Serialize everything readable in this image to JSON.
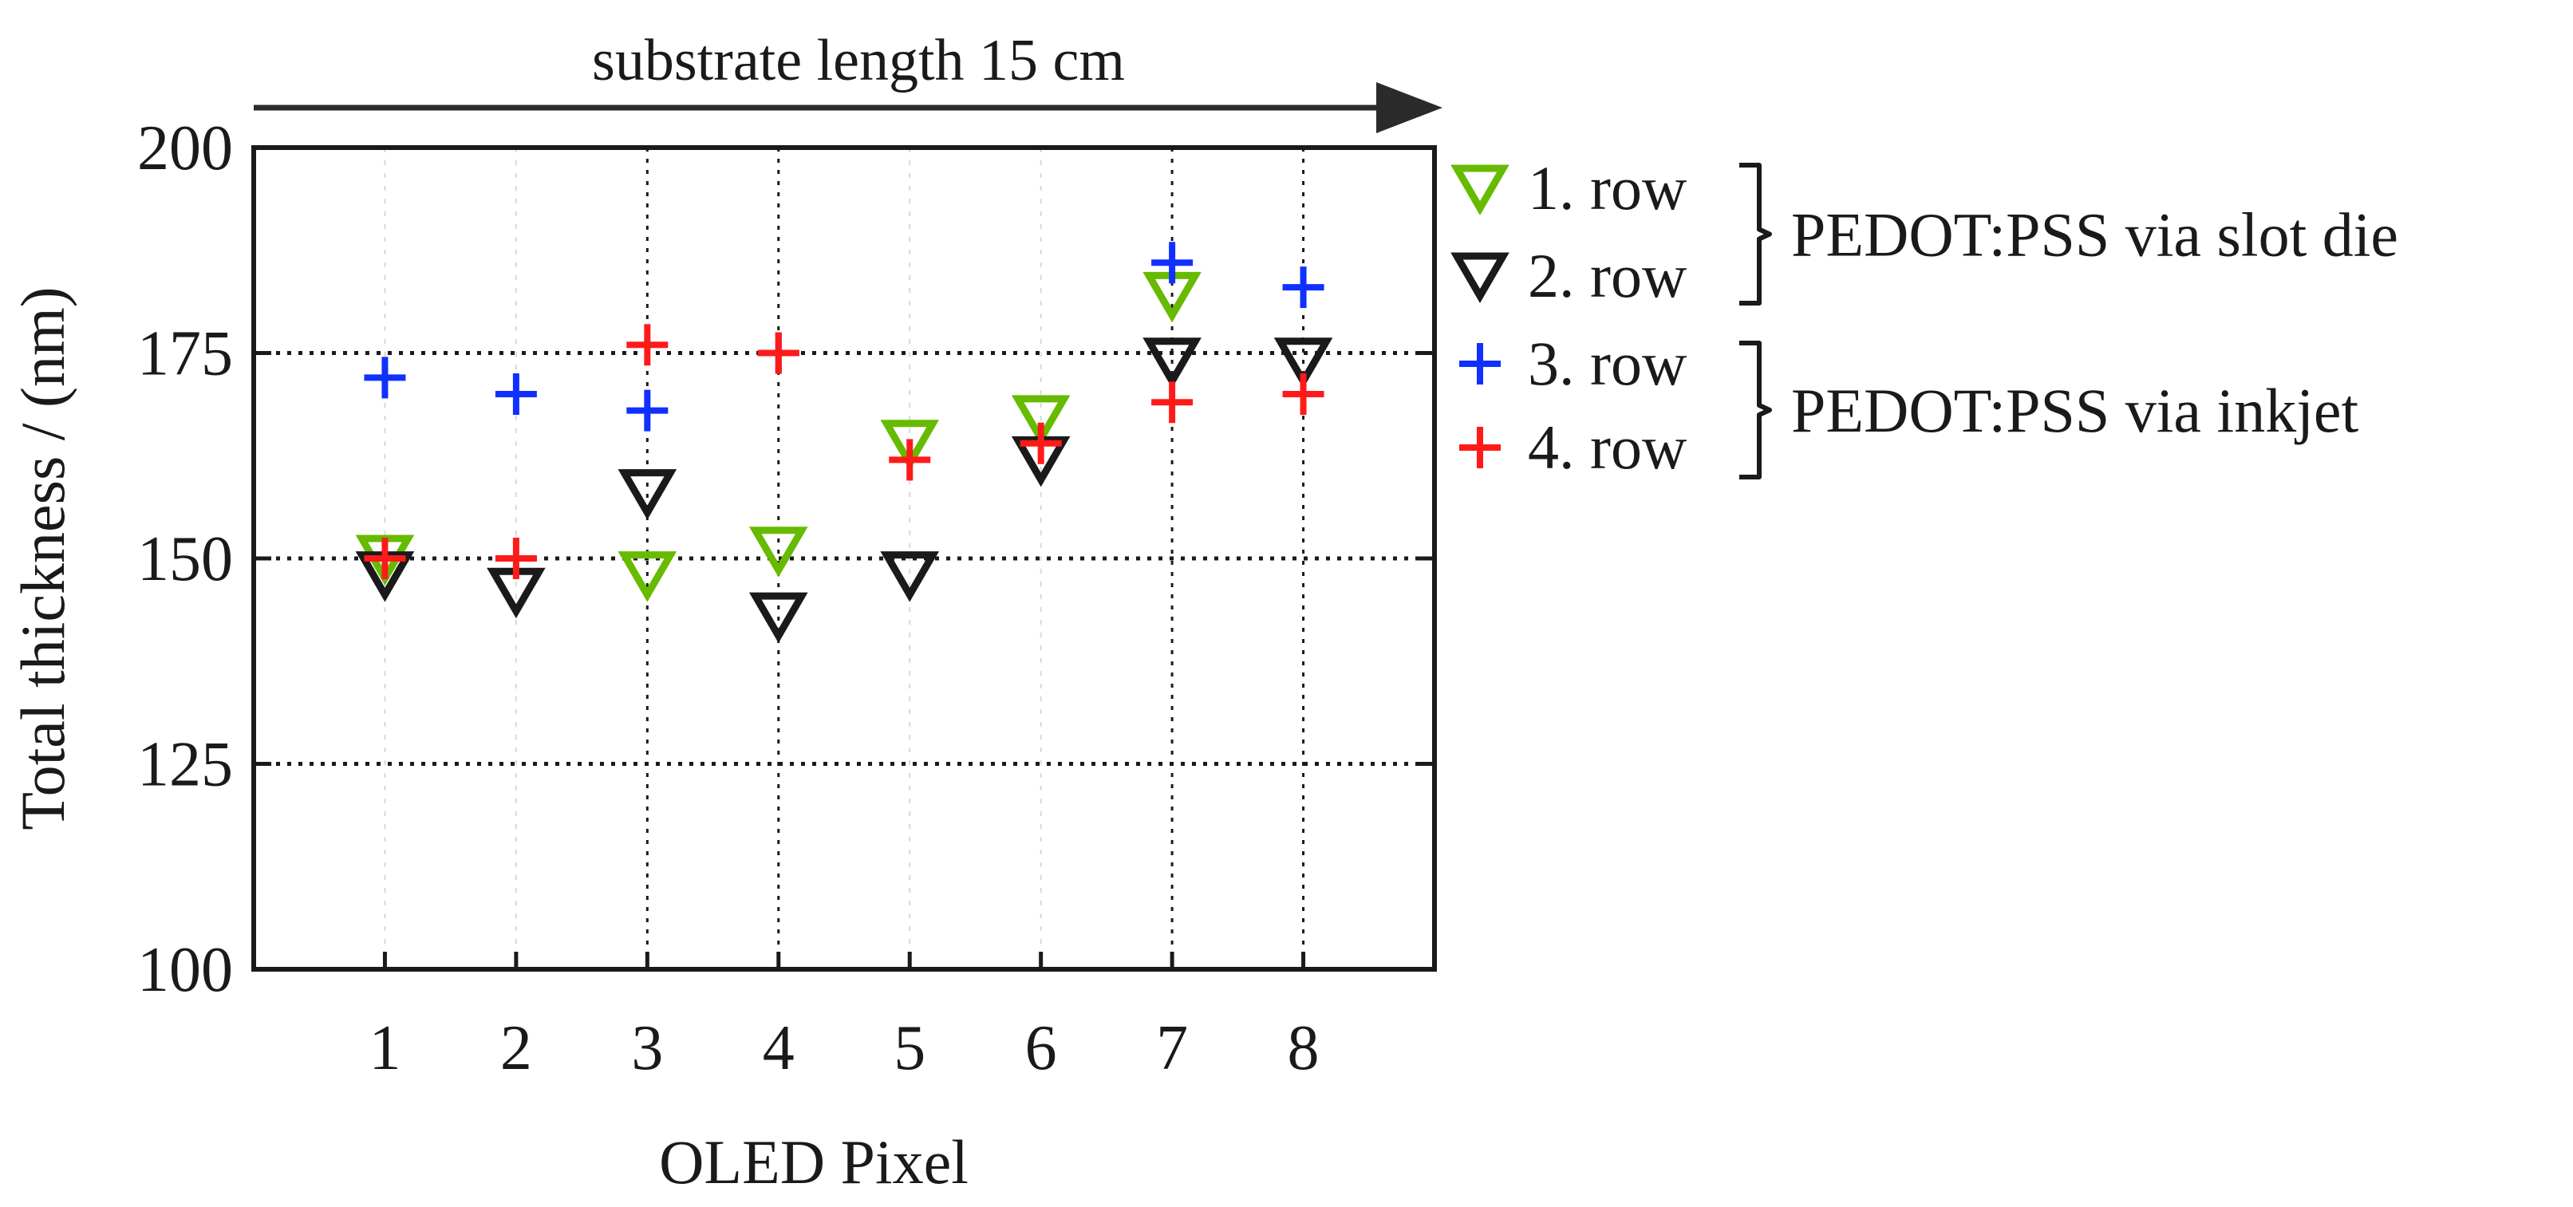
{
  "chart_data": {
    "type": "scatter",
    "title": "",
    "banner": "substrate length 15 cm",
    "xlabel": "OLED Pixel",
    "ylabel": "Total thickness / (nm)",
    "xlim": [
      0,
      9
    ],
    "ylim": [
      100,
      200
    ],
    "x_ticks": [
      1,
      2,
      3,
      4,
      5,
      6,
      7,
      8
    ],
    "y_ticks": [
      100,
      125,
      150,
      175,
      200
    ],
    "grid": "dotted lines at y = 125, 150, 175 and x = 3, 4, 7, 8",
    "legend_position": "right, outside plot",
    "series": [
      {
        "name": "1. row",
        "marker": "triangle-down",
        "color": "#66bb00",
        "x": [
          1,
          3,
          4,
          5,
          6,
          7
        ],
        "y": [
          150,
          148,
          151,
          164,
          167,
          182
        ]
      },
      {
        "name": "2. row",
        "marker": "triangle-down",
        "color": "#1a1a1a",
        "x": [
          1,
          2,
          3,
          4,
          5,
          6,
          7,
          8
        ],
        "y": [
          148,
          146,
          158,
          143,
          148,
          162,
          174,
          174
        ]
      },
      {
        "name": "3. row",
        "marker": "plus",
        "color": "#1030ff",
        "x": [
          1,
          2,
          3,
          4,
          7,
          8
        ],
        "y": [
          172,
          170,
          168,
          175,
          186,
          183
        ]
      },
      {
        "name": "4. row",
        "marker": "plus",
        "color": "#ff1a1a",
        "x": [
          1,
          2,
          3,
          4,
          5,
          6,
          7,
          8
        ],
        "y": [
          150,
          150,
          176,
          175,
          162,
          164,
          169,
          170
        ]
      }
    ],
    "groups": [
      {
        "label": "PEDOT:PSS via slot die",
        "series": [
          "1. row",
          "2. row"
        ]
      },
      {
        "label": "PEDOT:PSS via inkjet",
        "series": [
          "3. row",
          "4. row"
        ]
      }
    ]
  }
}
